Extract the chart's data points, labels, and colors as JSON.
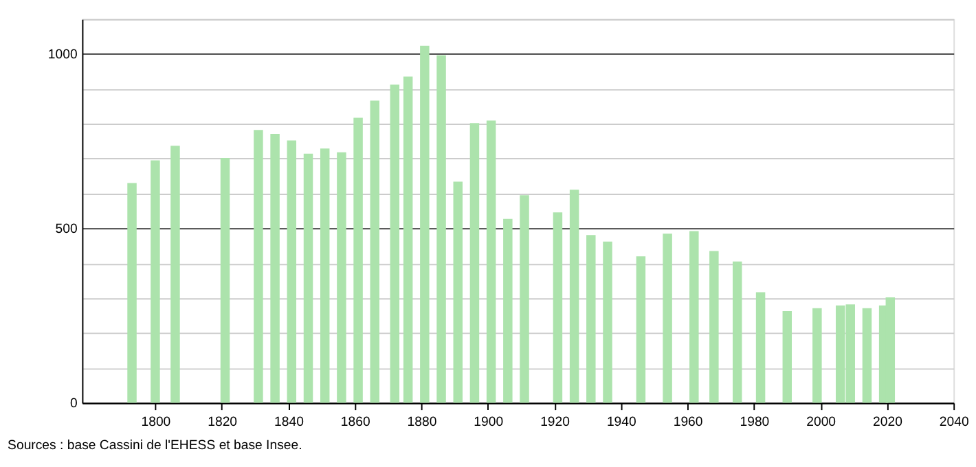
{
  "chart_data": {
    "type": "bar",
    "color": "#ace3ac",
    "x": [
      1793,
      1800,
      1806,
      1821,
      1831,
      1836,
      1841,
      1846,
      1851,
      1856,
      1861,
      1866,
      1872,
      1876,
      1881,
      1886,
      1891,
      1896,
      1901,
      1906,
      1911,
      1921,
      1926,
      1931,
      1936,
      1946,
      1954,
      1962,
      1968,
      1975,
      1982,
      1990,
      1999,
      2006,
      2009,
      2014,
      2019,
      2021
    ],
    "values": [
      630,
      695,
      737,
      702,
      782,
      771,
      752,
      714,
      729,
      718,
      817,
      866,
      912,
      935,
      1023,
      996,
      634,
      802,
      809,
      527,
      595,
      546,
      611,
      481,
      462,
      420,
      485,
      492,
      435,
      405,
      317,
      263,
      271,
      279,
      282,
      271,
      279,
      302
    ],
    "xlim": [
      1778,
      2040
    ],
    "xticks": [
      1800,
      1820,
      1840,
      1860,
      1880,
      1900,
      1920,
      1940,
      1960,
      1980,
      2000,
      2020,
      2040
    ],
    "ylim": [
      0,
      1100
    ],
    "yticks": [
      0,
      {
        "value": 100,
        "label": null
      },
      {
        "value": 200,
        "label": null
      },
      {
        "value": 300,
        "label": null
      },
      {
        "value": 400,
        "label": null
      },
      500,
      {
        "value": 600,
        "label": null
      },
      {
        "value": 700,
        "label": null
      },
      {
        "value": 800,
        "label": null
      },
      {
        "value": 900,
        "label": null
      },
      1000,
      {
        "value": 1100,
        "label": null
      }
    ],
    "grid": "y",
    "annotations": [
      "Sources : base Cassini de l'EHESS et base Insee."
    ]
  }
}
